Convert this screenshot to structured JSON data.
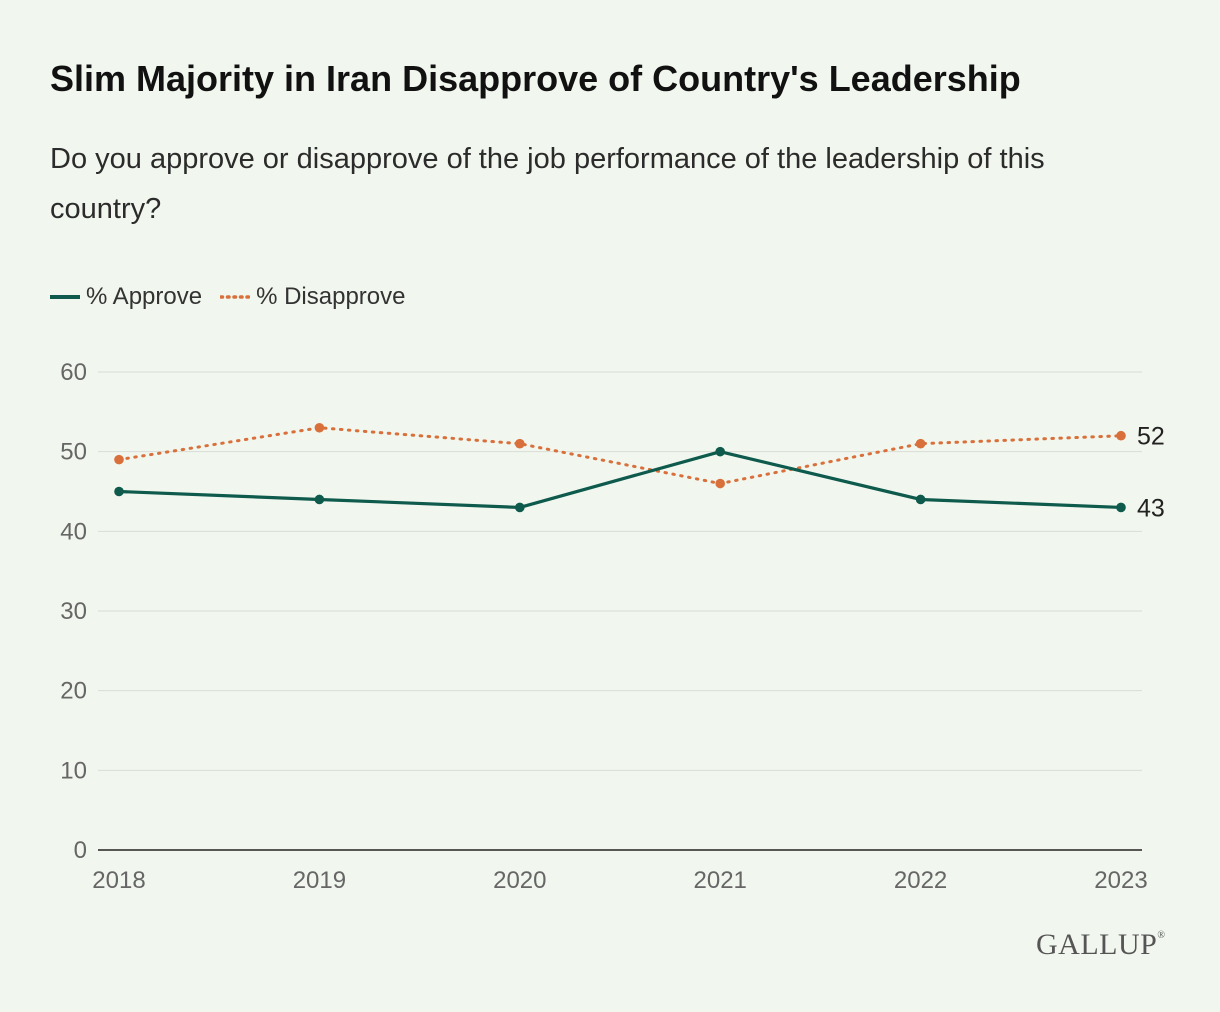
{
  "chart_data": {
    "type": "line",
    "title": "Slim Majority in Iran Disapprove of Country's Leadership",
    "subtitle": "Do you approve or disapprove of the job performance of the leadership of this country?",
    "x": [
      "2018",
      "2019",
      "2020",
      "2021",
      "2022",
      "2023"
    ],
    "series": [
      {
        "name": "% Approve",
        "values": [
          45,
          44,
          43,
          50,
          44,
          43
        ],
        "color": "#0e5a4c",
        "style": "solid",
        "end_label": "43"
      },
      {
        "name": "% Disapprove",
        "values": [
          49,
          53,
          51,
          46,
          51,
          52
        ],
        "color": "#d9703c",
        "style": "dotted",
        "end_label": "52"
      }
    ],
    "yticks": [
      "0",
      "10",
      "20",
      "30",
      "40",
      "50",
      "60"
    ],
    "ylim": [
      0,
      60
    ],
    "grid": true,
    "legend_position": "top-left"
  },
  "branding": {
    "logo_text": "GALLUP",
    "logo_mark": "®"
  },
  "colors": {
    "background": "#f1f7ee",
    "grid": "#d8ddd5",
    "axis": "#222222",
    "tick_text": "#666666"
  }
}
